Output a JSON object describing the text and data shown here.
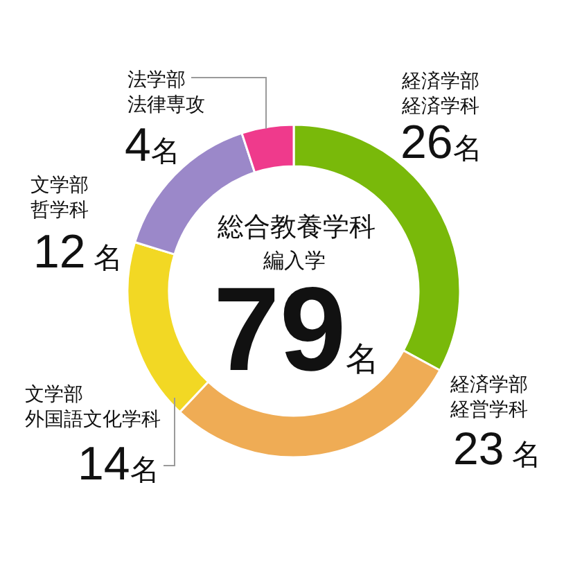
{
  "chart_data": {
    "type": "donut",
    "title": "総合教養学科",
    "subtitle": "編入学",
    "annotations": [
      "79名"
    ],
    "categories": [
      "経済学部経済学科",
      "経済学部経営学科",
      "文学部外国語文化学科",
      "文学部哲学科",
      "法学部法律専攻"
    ],
    "values": [
      26,
      23,
      14,
      12,
      4
    ],
    "value_labels": [
      "26名",
      "23 名",
      "14名",
      "12 名",
      "4名"
    ],
    "colors": [
      "#79b90a",
      "#efac55",
      "#f2d824",
      "#9b88c9",
      "#ef3a8c"
    ]
  }
}
